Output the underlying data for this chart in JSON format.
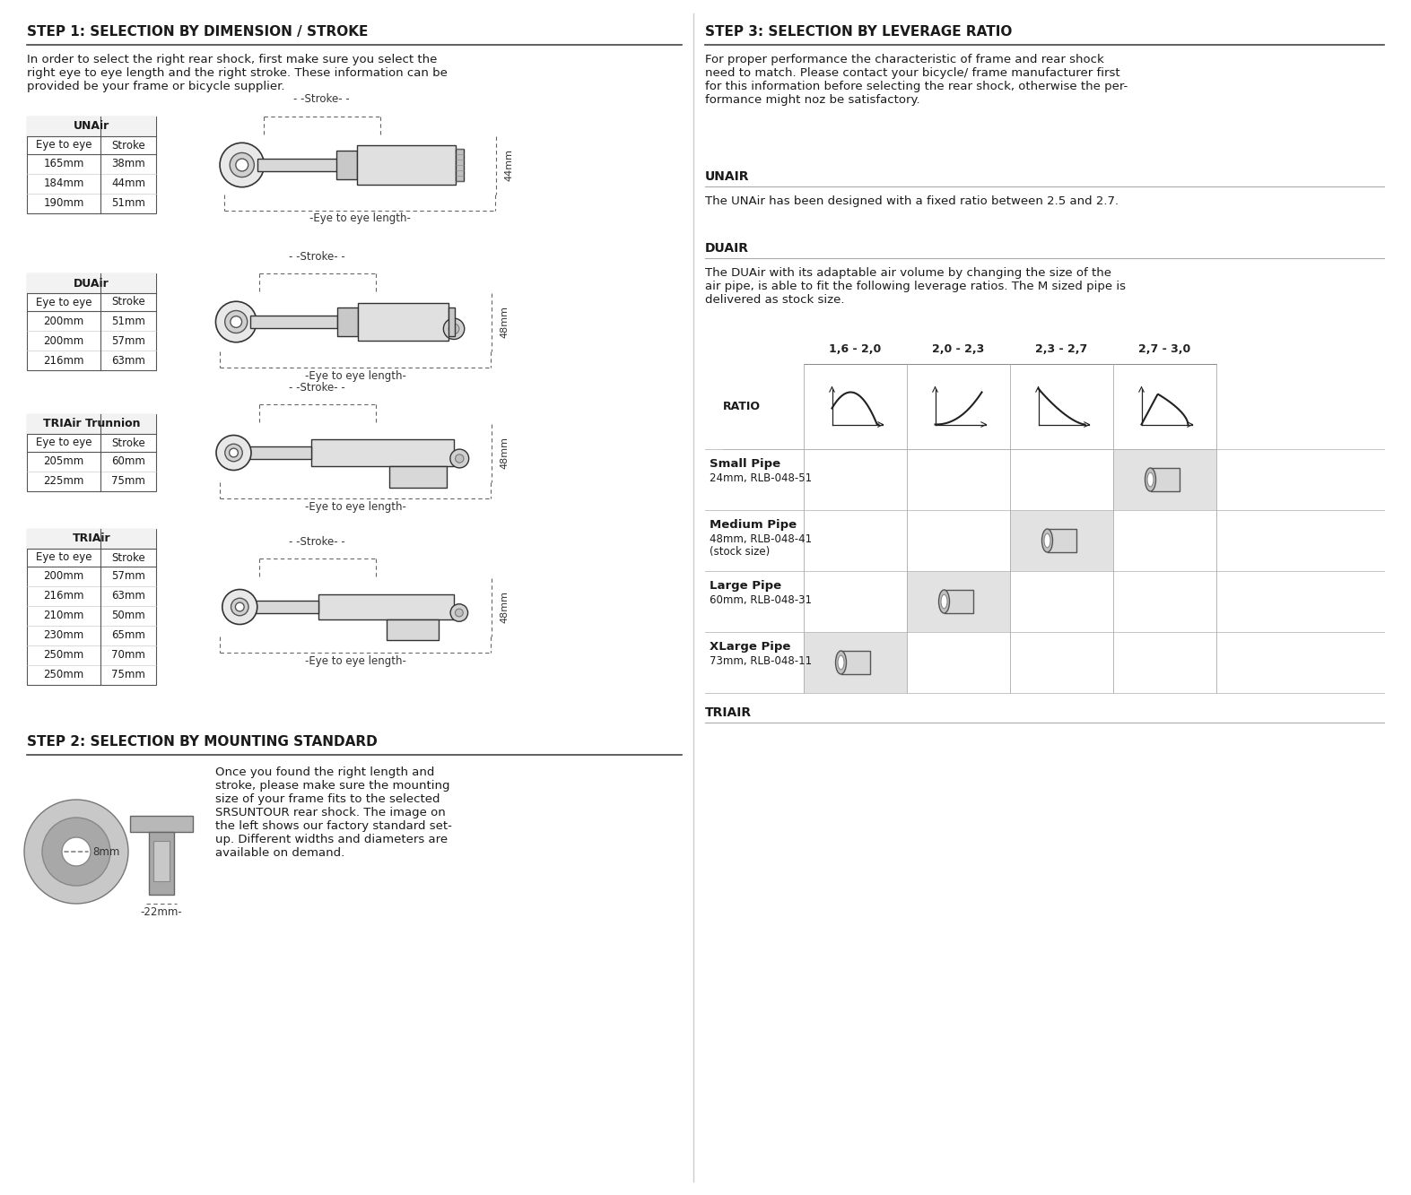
{
  "bg_color": "#ffffff",
  "step1_title": "STEP 1: SELECTION BY DIMENSION / STROKE",
  "step1_body": "In order to select the right rear shock, first make sure you select the\nright eye to eye length and the right stroke. These information can be\nprovided be your frame or bicycle supplier.",
  "step2_title": "STEP 2: SELECTION BY MOUNTING STANDARD",
  "step2_body": "Once you found the right length and\nstroke, please make sure the mounting\nsize of your frame fits to the selected\nSRSUNTOUR rear shock. The image on\nthe left shows our factory standard set-\nup. Different widths and diameters are\navailable on demand.",
  "step3_title": "STEP 3: SELECTION BY LEVERAGE RATIO",
  "step3_body": "For proper performance the characteristic of frame and rear shock\nneed to match. Please contact your bicycle/ frame manufacturer first\nfor this information before selecting the rear shock, otherwise the per-\nformance might noz be satisfactory.",
  "unair_title": "UNAIR",
  "unair_body": "The UNAir has been designed with a fixed ratio between 2.5 and 2.7.",
  "duair_title": "DUAIR",
  "duair_body": "The DUAir with its adaptable air volume by changing the size of the\nair pipe, is able to fit the following leverage ratios. The M sized pipe is\ndelivered as stock size.",
  "triair_title": "TRIAIR",
  "tables": {
    "UNAir": {
      "title": "UNAir",
      "headers": [
        "Eye to eye",
        "Stroke"
      ],
      "rows": [
        [
          "165mm",
          "38mm"
        ],
        [
          "184mm",
          "44mm"
        ],
        [
          "190mm",
          "51mm"
        ]
      ]
    },
    "DUAir": {
      "title": "DUAir",
      "headers": [
        "Eye to eye",
        "Stroke"
      ],
      "rows": [
        [
          "200mm",
          "51mm"
        ],
        [
          "200mm",
          "57mm"
        ],
        [
          "216mm",
          "63mm"
        ]
      ]
    },
    "TRIAir Trunnion": {
      "title": "TRIAir Trunnion",
      "headers": [
        "Eye to eye",
        "Stroke"
      ],
      "rows": [
        [
          "205mm",
          "60mm"
        ],
        [
          "225mm",
          "75mm"
        ]
      ]
    },
    "TRIAir": {
      "title": "TRIAir",
      "headers": [
        "Eye to eye",
        "Stroke"
      ],
      "rows": [
        [
          "200mm",
          "57mm"
        ],
        [
          "216mm",
          "63mm"
        ],
        [
          "210mm",
          "50mm"
        ],
        [
          "230mm",
          "65mm"
        ],
        [
          "250mm",
          "70mm"
        ],
        [
          "250mm",
          "75mm"
        ]
      ]
    }
  },
  "ratio_cols": [
    "1,6 - 2,0",
    "2,0 - 2,3",
    "2,3 - 2,7",
    "2,7 - 3,0"
  ],
  "pipe_rows": [
    {
      "name": "Small Pipe",
      "sub1": "24mm, RLB-048-51",
      "sub2": "",
      "col": 3,
      "highlight_col": 3
    },
    {
      "name": "Medium Pipe",
      "sub1": "48mm, RLB-048-41",
      "sub2": "(stock size)",
      "col": 2,
      "highlight_col": 2
    },
    {
      "name": "Large Pipe",
      "sub1": "60mm, RLB-048-31",
      "sub2": "",
      "col": 1,
      "highlight_col": 1
    },
    {
      "name": "XLarge Pipe",
      "sub1": "73mm, RLB-048-11",
      "sub2": "",
      "col": 0,
      "highlight_col": 0
    }
  ]
}
